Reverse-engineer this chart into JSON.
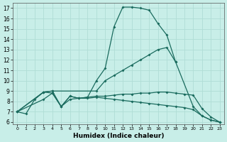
{
  "xlabel": "Humidex (Indice chaleur)",
  "xlim": [
    -0.5,
    23.5
  ],
  "ylim": [
    5.8,
    17.5
  ],
  "yticks": [
    6,
    7,
    8,
    9,
    10,
    11,
    12,
    13,
    14,
    15,
    16,
    17
  ],
  "xticks": [
    0,
    1,
    2,
    3,
    4,
    5,
    6,
    7,
    8,
    9,
    10,
    11,
    12,
    13,
    14,
    15,
    16,
    17,
    18,
    19,
    20,
    21,
    22,
    23
  ],
  "bg_color": "#c8eee8",
  "line_color": "#1a6b5e",
  "grid_color": "#b0ddd5",
  "lines": [
    {
      "x": [
        0,
        1,
        2,
        3,
        4,
        5,
        6,
        7,
        8,
        9,
        10,
        11,
        12,
        13,
        14,
        15,
        16,
        17,
        18
      ],
      "y": [
        7.0,
        6.8,
        8.2,
        8.9,
        8.8,
        7.5,
        8.5,
        8.3,
        8.4,
        10.0,
        11.2,
        15.2,
        17.1,
        17.1,
        17.0,
        16.8,
        15.5,
        14.4,
        11.8
      ]
    },
    {
      "x": [
        0,
        3,
        4,
        9,
        10,
        11,
        12,
        13,
        14,
        15,
        16,
        17,
        18,
        20,
        21,
        22,
        23
      ],
      "y": [
        7.0,
        8.9,
        9.0,
        9.0,
        10.0,
        10.5,
        11.0,
        11.5,
        12.0,
        12.5,
        13.0,
        13.2,
        11.8,
        7.5,
        6.6,
        6.2,
        6.0
      ]
    },
    {
      "x": [
        0,
        3,
        4,
        5,
        6,
        7,
        8,
        9,
        10,
        11,
        12,
        13,
        14,
        15,
        16,
        17,
        18,
        19,
        20,
        21,
        22,
        23
      ],
      "y": [
        7.0,
        8.9,
        9.0,
        7.5,
        8.5,
        8.3,
        8.4,
        8.5,
        8.5,
        8.6,
        8.7,
        8.7,
        8.8,
        8.8,
        8.9,
        8.9,
        8.8,
        8.7,
        8.6,
        7.3,
        6.5,
        6.0
      ]
    },
    {
      "x": [
        0,
        3,
        4,
        5,
        6,
        7,
        8,
        9,
        10,
        11,
        12,
        13,
        14,
        15,
        16,
        17,
        18,
        19,
        20,
        21,
        22,
        23
      ],
      "y": [
        7.0,
        8.2,
        8.8,
        7.5,
        8.2,
        8.3,
        8.3,
        8.4,
        8.3,
        8.2,
        8.1,
        8.0,
        7.9,
        7.8,
        7.7,
        7.6,
        7.5,
        7.4,
        7.2,
        6.6,
        6.2,
        6.0
      ]
    }
  ]
}
